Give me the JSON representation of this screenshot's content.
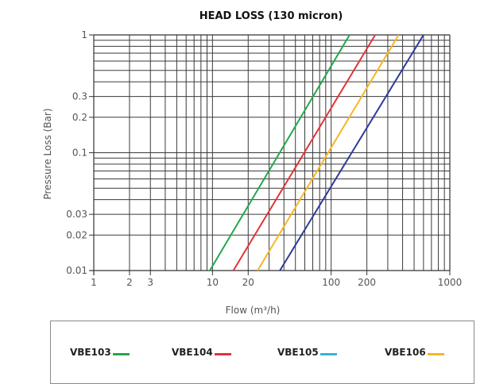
{
  "chart_data": {
    "type": "line",
    "title": "HEAD LOSS (130 micron)",
    "xlabel": "Flow (m³/h)",
    "ylabel": "Pressure Loss (Bar)",
    "xscale": "log",
    "yscale": "log",
    "xlim": [
      1,
      1000
    ],
    "ylim": [
      0.01,
      1
    ],
    "grid": true,
    "x_ticks": [
      {
        "value": 1,
        "label": "1"
      },
      {
        "value": 2,
        "label": "2"
      },
      {
        "value": 3,
        "label": "3"
      },
      {
        "value": 10,
        "label": "10"
      },
      {
        "value": 20,
        "label": "20"
      },
      {
        "value": 100,
        "label": "100"
      },
      {
        "value": 200,
        "label": "200"
      },
      {
        "value": 1000,
        "label": "1000"
      }
    ],
    "y_ticks": [
      {
        "value": 0.01,
        "label": "0.01"
      },
      {
        "value": 0.02,
        "label": "0.02"
      },
      {
        "value": 0.03,
        "label": "0.03"
      },
      {
        "value": 0.1,
        "label": "0.1"
      },
      {
        "value": 0.2,
        "label": "0.2"
      },
      {
        "value": 0.3,
        "label": "0.3"
      },
      {
        "value": 1,
        "label": "1"
      }
    ],
    "series": [
      {
        "name": "VBE103",
        "color": "#22a84a",
        "x": [
          9.5,
          143
        ],
        "y": [
          0.01,
          1
        ]
      },
      {
        "name": "VBE104",
        "color": "#e53238",
        "x": [
          15,
          235
        ],
        "y": [
          0.01,
          1
        ]
      },
      {
        "name": "VBE105",
        "color": "#f6b626",
        "x": [
          24,
          370
        ],
        "y": [
          0.01,
          1
        ]
      },
      {
        "name": "VBE106",
        "color": "#2e3a9c",
        "x": [
          37,
          600
        ],
        "y": [
          0.01,
          1
        ]
      }
    ],
    "legend": {
      "position": "bottom",
      "items": [
        {
          "label": "VBE103",
          "color": "#22a84a"
        },
        {
          "label": "VBE104",
          "color": "#e53238"
        },
        {
          "label": "VBE105",
          "color": "#2fb7d6"
        },
        {
          "label": "VBE106",
          "color": "#f6b626"
        }
      ]
    }
  }
}
